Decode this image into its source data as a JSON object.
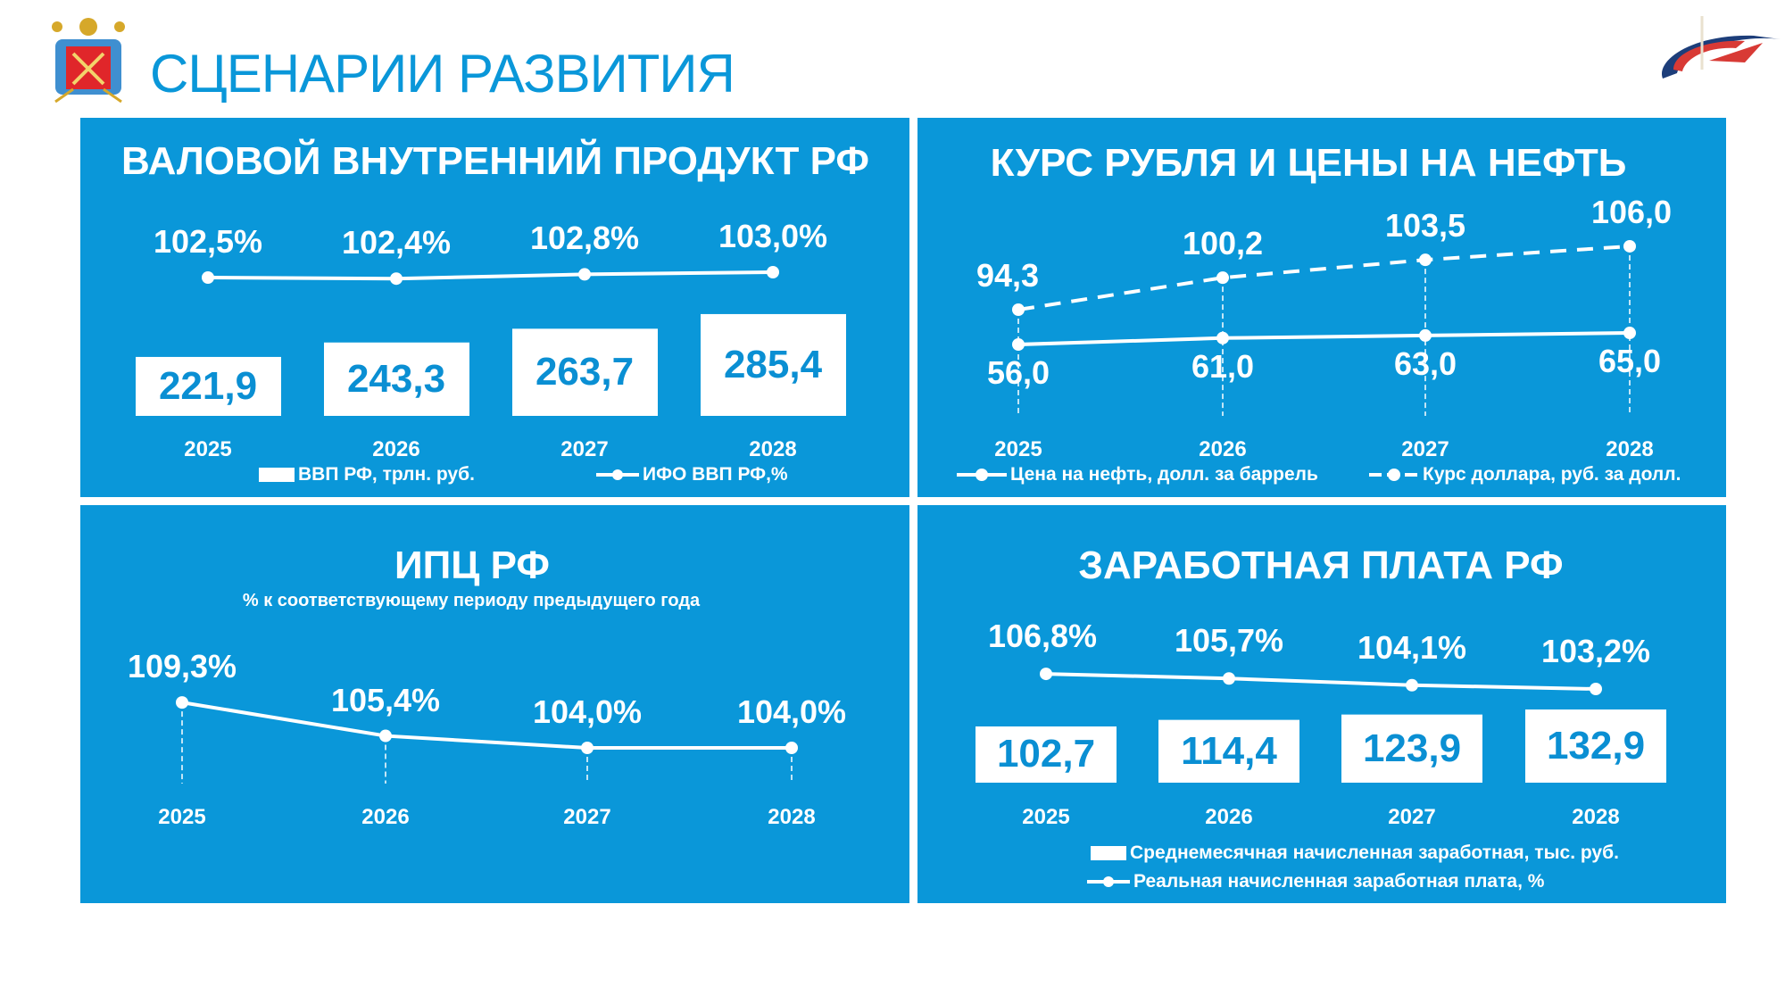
{
  "header": {
    "title": "СЦЕНАРИИ РАЗВИТИЯ"
  },
  "colors": {
    "panel": "#0a97d9",
    "bar_text": "#0a8fd3",
    "white": "#ffffff"
  },
  "chart_data": [
    {
      "type": "bar",
      "title": "ВАЛОВОЙ ВНУТРЕННИЙ ПРОДУКТ РФ",
      "categories": [
        "2025",
        "2026",
        "2027",
        "2028"
      ],
      "series": [
        {
          "name": "ВВП РФ, трлн. руб.",
          "kind": "bar",
          "values": [
            221.9,
            243.3,
            263.7,
            285.4
          ],
          "labels": [
            "221,9",
            "243,3",
            "263,7",
            "285,4"
          ]
        },
        {
          "name": "ИФО ВВП РФ,%",
          "kind": "line",
          "values": [
            102.5,
            102.4,
            102.8,
            103.0
          ],
          "labels": [
            "102,5%",
            "102,4%",
            "102,8%",
            "103,0%"
          ]
        }
      ]
    },
    {
      "type": "line",
      "title": "КУРС РУБЛЯ И ЦЕНЫ НА НЕФТЬ",
      "categories": [
        "2025",
        "2026",
        "2027",
        "2028"
      ],
      "series": [
        {
          "name": "Цена на нефть, долл. за баррель",
          "style": "solid",
          "values": [
            56.0,
            61.0,
            63.0,
            65.0
          ],
          "labels": [
            "56,0",
            "61,0",
            "63,0",
            "65,0"
          ]
        },
        {
          "name": "Курс доллара, руб. за долл.",
          "style": "dashed",
          "values": [
            94.3,
            100.2,
            103.5,
            106.0
          ],
          "labels": [
            "94,3",
            "100,2",
            "103,5",
            "106,0"
          ]
        }
      ]
    },
    {
      "type": "line",
      "title": "ИПЦ РФ",
      "subtitle": "% к соответствующему периоду предыдущего года",
      "categories": [
        "2025",
        "2026",
        "2027",
        "2028"
      ],
      "series": [
        {
          "name": "ИПЦ",
          "values": [
            109.3,
            105.4,
            104.0,
            104.0
          ],
          "labels": [
            "109,3%",
            "105,4%",
            "104,0%",
            "104,0%"
          ]
        }
      ]
    },
    {
      "type": "bar",
      "title": "ЗАРАБОТНАЯ ПЛАТА РФ",
      "categories": [
        "2025",
        "2026",
        "2027",
        "2028"
      ],
      "series": [
        {
          "name": "Среднемесячная начисленная заработная, тыс. руб.",
          "kind": "bar",
          "values": [
            102.7,
            114.4,
            123.9,
            132.9
          ],
          "labels": [
            "102,7",
            "114,4",
            "123,9",
            "132,9"
          ]
        },
        {
          "name": "Реальная начисленная заработная плата, %",
          "kind": "line",
          "values": [
            106.8,
            105.7,
            104.1,
            103.2
          ],
          "labels": [
            "106,8%",
            "105,7%",
            "104,1%",
            "103,2%"
          ]
        }
      ]
    }
  ]
}
